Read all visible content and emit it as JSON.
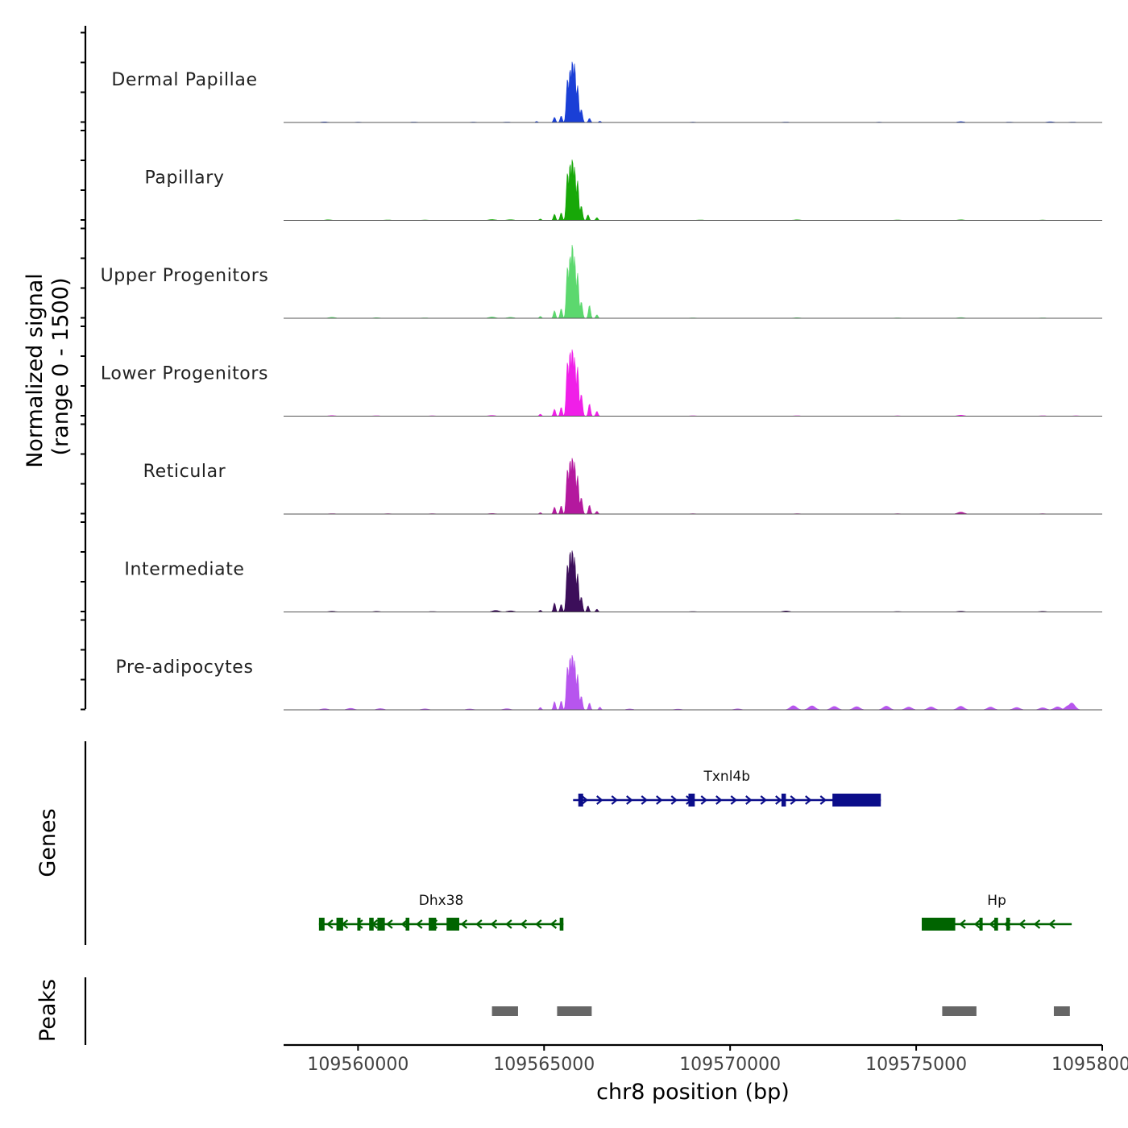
{
  "chart_data": {
    "type": "area",
    "title": "",
    "ylabel_line1": "Normalized signal",
    "ylabel_line2": "(range 0 - 1500)",
    "y_range": [
      0,
      1500
    ],
    "xlabel": "chr8 position (bp)",
    "xlim": [
      109558000,
      109580000
    ],
    "x_ticks": [
      109560000,
      109565000,
      109570000,
      109575000,
      109580000
    ],
    "x_tick_labels": [
      "109560000",
      "109565000",
      "109570000",
      "109575000",
      "109580000"
    ],
    "tracks": [
      {
        "name": "Dermal Papillae",
        "color": "#1a3fd6",
        "background": [
          [
            109559100,
            8
          ],
          [
            109560000,
            5
          ],
          [
            109561500,
            6
          ],
          [
            109563100,
            5
          ],
          [
            109564000,
            6
          ],
          [
            109569000,
            5
          ],
          [
            109571500,
            6
          ],
          [
            109574000,
            5
          ],
          [
            109576200,
            12
          ],
          [
            109577500,
            6
          ],
          [
            109578600,
            10
          ],
          [
            109579200,
            6
          ]
        ],
        "peaks": [
          [
            109565630,
            640
          ],
          [
            109565700,
            790
          ],
          [
            109565760,
            910
          ],
          [
            109565820,
            860
          ],
          [
            109565900,
            540
          ],
          [
            109566000,
            190
          ],
          [
            109565280,
            75
          ],
          [
            109565460,
            95
          ],
          [
            109566220,
            60
          ],
          [
            109566500,
            18
          ],
          [
            109564800,
            15
          ]
        ]
      },
      {
        "name": "Papillary",
        "color": "#17a808",
        "background": [
          [
            109559200,
            8
          ],
          [
            109560800,
            6
          ],
          [
            109561800,
            5
          ],
          [
            109563600,
            12
          ],
          [
            109564100,
            10
          ],
          [
            109569200,
            6
          ],
          [
            109571800,
            8
          ],
          [
            109574500,
            6
          ],
          [
            109576200,
            8
          ],
          [
            109578400,
            5
          ]
        ],
        "peaks": [
          [
            109565630,
            700
          ],
          [
            109565700,
            840
          ],
          [
            109565760,
            910
          ],
          [
            109565820,
            780
          ],
          [
            109565900,
            580
          ],
          [
            109566000,
            210
          ],
          [
            109565280,
            90
          ],
          [
            109565460,
            110
          ],
          [
            109566180,
            80
          ],
          [
            109566420,
            40
          ],
          [
            109564900,
            20
          ]
        ]
      },
      {
        "name": "Upper Progenitors",
        "color": "#5cd86e",
        "background": [
          [
            109559300,
            14
          ],
          [
            109560500,
            8
          ],
          [
            109561800,
            6
          ],
          [
            109563600,
            18
          ],
          [
            109564100,
            14
          ],
          [
            109569000,
            6
          ],
          [
            109571800,
            8
          ],
          [
            109574500,
            6
          ],
          [
            109576200,
            10
          ],
          [
            109578400,
            6
          ]
        ],
        "peaks": [
          [
            109565630,
            760
          ],
          [
            109565700,
            930
          ],
          [
            109565760,
            1100
          ],
          [
            109565820,
            900
          ],
          [
            109565900,
            660
          ],
          [
            109566000,
            240
          ],
          [
            109565280,
            110
          ],
          [
            109565460,
            140
          ],
          [
            109566220,
            190
          ],
          [
            109566420,
            50
          ],
          [
            109564900,
            28
          ]
        ]
      },
      {
        "name": "Lower Progenitors",
        "color": "#f01fe8",
        "background": [
          [
            109559300,
            8
          ],
          [
            109560500,
            6
          ],
          [
            109562000,
            5
          ],
          [
            109563600,
            10
          ],
          [
            109569000,
            6
          ],
          [
            109571800,
            6
          ],
          [
            109574500,
            5
          ],
          [
            109576200,
            14
          ],
          [
            109578400,
            6
          ],
          [
            109579300,
            5
          ]
        ],
        "peaks": [
          [
            109565630,
            800
          ],
          [
            109565700,
            960
          ],
          [
            109565760,
            1000
          ],
          [
            109565820,
            860
          ],
          [
            109565900,
            720
          ],
          [
            109566000,
            320
          ],
          [
            109565280,
            100
          ],
          [
            109565460,
            130
          ],
          [
            109566220,
            180
          ],
          [
            109566420,
            70
          ],
          [
            109564900,
            30
          ]
        ]
      },
      {
        "name": "Reticular",
        "color": "#b4189e",
        "background": [
          [
            109559300,
            6
          ],
          [
            109560800,
            5
          ],
          [
            109562000,
            5
          ],
          [
            109563600,
            8
          ],
          [
            109569000,
            5
          ],
          [
            109571800,
            5
          ],
          [
            109574500,
            5
          ],
          [
            109576200,
            28
          ],
          [
            109578400,
            5
          ]
        ],
        "peaks": [
          [
            109565630,
            660
          ],
          [
            109565700,
            800
          ],
          [
            109565760,
            840
          ],
          [
            109565820,
            760
          ],
          [
            109565900,
            560
          ],
          [
            109566000,
            240
          ],
          [
            109565280,
            100
          ],
          [
            109565460,
            120
          ],
          [
            109566220,
            130
          ],
          [
            109566420,
            40
          ],
          [
            109564900,
            20
          ]
        ]
      },
      {
        "name": "Intermediate",
        "color": "#3c0e5a",
        "background": [
          [
            109559300,
            10
          ],
          [
            109560500,
            8
          ],
          [
            109562000,
            6
          ],
          [
            109563700,
            22
          ],
          [
            109564100,
            16
          ],
          [
            109569000,
            6
          ],
          [
            109571500,
            14
          ],
          [
            109574500,
            6
          ],
          [
            109576200,
            10
          ],
          [
            109578400,
            8
          ]
        ],
        "peaks": [
          [
            109565630,
            700
          ],
          [
            109565700,
            900
          ],
          [
            109565760,
            920
          ],
          [
            109565820,
            800
          ],
          [
            109565900,
            560
          ],
          [
            109566000,
            220
          ],
          [
            109565280,
            130
          ],
          [
            109565460,
            110
          ],
          [
            109566180,
            90
          ],
          [
            109566420,
            40
          ],
          [
            109564900,
            25
          ]
        ]
      },
      {
        "name": "Pre-adipocytes",
        "color": "#b755ee",
        "background": [
          [
            109559100,
            16
          ],
          [
            109559800,
            22
          ],
          [
            109560600,
            18
          ],
          [
            109561800,
            14
          ],
          [
            109563000,
            12
          ],
          [
            109564000,
            16
          ],
          [
            109567300,
            12
          ],
          [
            109568600,
            10
          ],
          [
            109570200,
            14
          ],
          [
            109571700,
            60
          ],
          [
            109572200,
            58
          ],
          [
            109572800,
            50
          ],
          [
            109573400,
            46
          ],
          [
            109574200,
            54
          ],
          [
            109574800,
            40
          ],
          [
            109575400,
            42
          ],
          [
            109576200,
            52
          ],
          [
            109577000,
            40
          ],
          [
            109577700,
            34
          ],
          [
            109578400,
            30
          ],
          [
            109578800,
            44
          ],
          [
            109579100,
            64
          ],
          [
            109579180,
            100
          ]
        ],
        "peaks": [
          [
            109565630,
            640
          ],
          [
            109565700,
            780
          ],
          [
            109565760,
            820
          ],
          [
            109565820,
            720
          ],
          [
            109565900,
            520
          ],
          [
            109566000,
            200
          ],
          [
            109565280,
            120
          ],
          [
            109565460,
            130
          ],
          [
            109566220,
            100
          ],
          [
            109566500,
            40
          ],
          [
            109564900,
            35
          ]
        ]
      }
    ],
    "genes_label": "Genes",
    "genes": [
      {
        "name": "Txnl4b",
        "color": "#0b0d8a",
        "strand": "+",
        "start": 109565780,
        "end": 109574050,
        "row": 1,
        "exons": [
          [
            109565920,
            109566050
          ],
          [
            109568880,
            109569050
          ],
          [
            109571380,
            109571500
          ],
          [
            109572750,
            109574050
          ]
        ]
      },
      {
        "name": "Dhx38",
        "color": "#006400",
        "strand": "-",
        "start": 109558950,
        "end": 109565520,
        "row": 2,
        "exons": [
          [
            109558950,
            109559100
          ],
          [
            109559420,
            109559600
          ],
          [
            109559980,
            109560060
          ],
          [
            109560300,
            109560420
          ],
          [
            109560520,
            109560720
          ],
          [
            109561280,
            109561380
          ],
          [
            109561900,
            109562100
          ],
          [
            109562380,
            109562720
          ],
          [
            109565420,
            109565520
          ]
        ]
      },
      {
        "name": "Hp",
        "color": "#006400",
        "strand": "-",
        "start": 109575150,
        "end": 109579180,
        "row": 2,
        "exons": [
          [
            109575150,
            109576050
          ],
          [
            109576700,
            109576760
          ],
          [
            109577100,
            109577200
          ],
          [
            109577420,
            109577520
          ]
        ]
      }
    ],
    "peaks_label": "Peaks",
    "peak_regions": [
      [
        109563600,
        109564300
      ],
      [
        109565350,
        109566280
      ],
      [
        109575700,
        109576620
      ],
      [
        109578700,
        109579130
      ]
    ]
  }
}
